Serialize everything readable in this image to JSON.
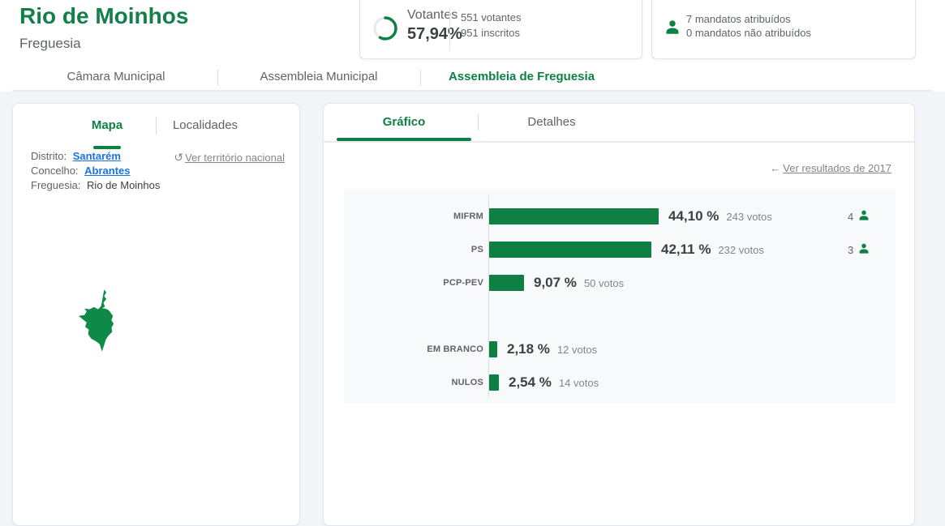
{
  "header": {
    "title": "Rio de Moinhos",
    "subtitle": "Freguesia",
    "turnout": {
      "label": "Votantes",
      "percent_display": "57,94%",
      "percent_value": 57.94,
      "voters_line": "551 votantes",
      "registered_line": "951 inscritos"
    },
    "mandates_box": {
      "assigned_line": "7 mandatos atribuídos",
      "unassigned_line": "0 mandatos não atribuídos"
    }
  },
  "main_tabs": [
    {
      "label": "Câmara Municipal",
      "active": false
    },
    {
      "label": "Assembleia Municipal",
      "active": false
    },
    {
      "label": "Assembleia de Freguesia",
      "active": true
    }
  ],
  "left_panel": {
    "tabs": [
      {
        "label": "Mapa",
        "active": true
      },
      {
        "label": "Localidades",
        "active": false
      }
    ],
    "territory_link": "Ver território nacional",
    "location_rows": [
      {
        "label": "Distrito:",
        "value": "Santarém",
        "is_link": true
      },
      {
        "label": "Concelho:",
        "value": "Abrantes",
        "is_link": true
      },
      {
        "label": "Freguesia:",
        "value": "Rio de Moinhos",
        "is_link": false
      }
    ]
  },
  "right_panel": {
    "tabs": [
      {
        "label": "Gráfico",
        "active": true
      },
      {
        "label": "Detalhes",
        "active": false
      }
    ],
    "back_link": "Ver resultados de 2017"
  },
  "chart_data": {
    "type": "bar",
    "orientation": "horizontal",
    "categories": [
      "MIFRM",
      "PS",
      "PCP-PEV",
      "EM BRANCO",
      "NULOS"
    ],
    "values_percent": [
      44.1,
      42.11,
      9.07,
      2.18,
      2.54
    ],
    "percent_labels": [
      "44,10 %",
      "42,11 %",
      "9,07 %",
      "2,18 %",
      "2,54 %"
    ],
    "votes": [
      243,
      232,
      50,
      12,
      14
    ],
    "votes_labels": [
      "243 votos",
      "232 votos",
      "50 votos",
      "12 votos",
      "14 votos"
    ],
    "mandates": [
      4,
      3,
      null,
      null,
      null
    ],
    "group_gap_after_index": 2,
    "bar_color": "#0e8043",
    "axis": "vertical-baseline-at-zero",
    "xlim_percent": [
      0,
      100
    ]
  },
  "colors": {
    "primary_green": "#0e8043",
    "link_blue": "#1a73e8",
    "text_dark": "#3c4043",
    "text_gray": "#5f6368",
    "text_light": "#80868b",
    "page_background": "#f2f4f8",
    "plot_background": "#f8f9fb"
  },
  "icons": {
    "turnout": "progress-ring-icon",
    "mandates": "person-icon",
    "territory": "undo-icon",
    "back": "left-arrow-icon"
  }
}
